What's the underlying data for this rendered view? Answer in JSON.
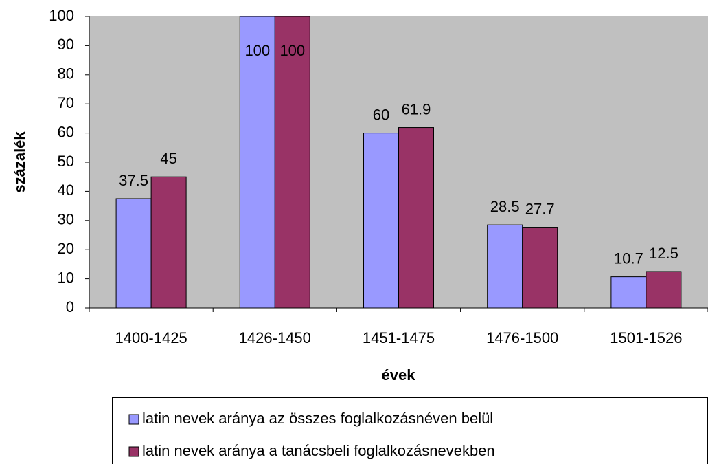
{
  "chart_data": {
    "type": "bar",
    "categories": [
      "1400-1425",
      "1426-1450",
      "1451-1475",
      "1476-1500",
      "1501-1526"
    ],
    "series": [
      {
        "name": "latin nevek aránya az összes foglalkozásnéven belül",
        "color": "#9999ff",
        "values": [
          37.5,
          100,
          60,
          28.5,
          10.7
        ]
      },
      {
        "name": "latin nevek aránya a tanácsbeli foglalkozásnevekben",
        "color": "#993366",
        "values": [
          45,
          100,
          61.9,
          27.7,
          12.5
        ]
      }
    ],
    "xlabel": "évek",
    "ylabel": "százalék",
    "ylim": [
      0,
      100
    ],
    "yticks": [
      0,
      10,
      20,
      30,
      40,
      50,
      60,
      70,
      80,
      90,
      100
    ],
    "plot_background": "#c0c0c0",
    "legend": "bottom"
  }
}
